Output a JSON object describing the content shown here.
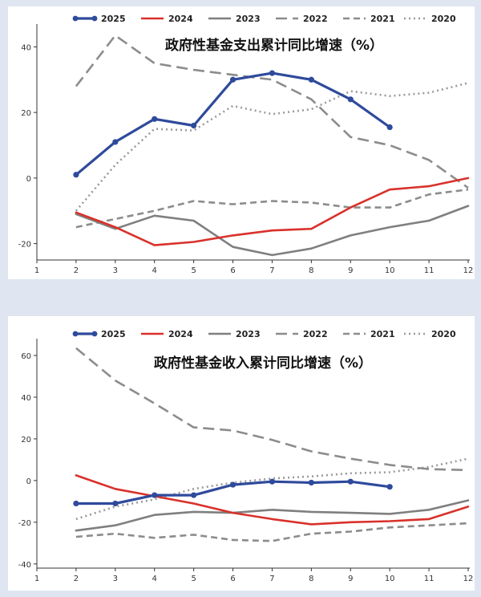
{
  "styles": {
    "2025": {
      "color": "#2e4a9c",
      "dash": "",
      "width": 3.2,
      "marker": true
    },
    "2024": {
      "color": "#d9312b",
      "dash": "",
      "width": 2.6,
      "marker": false
    },
    "2023": {
      "color": "#7f7f7f",
      "dash": "",
      "width": 2.6,
      "marker": false
    },
    "2022": {
      "color": "#8c8c8c",
      "dash": "14,7",
      "width": 2.6,
      "marker": false
    },
    "2021": {
      "color": "#8c8c8c",
      "dash": "8,5",
      "width": 2.6,
      "marker": false
    },
    "2020": {
      "color": "#9a9a9a",
      "dash": "2,4",
      "width": 2.6,
      "marker": false
    }
  },
  "chart_data": [
    {
      "type": "line",
      "title": "政府性基金支出累计同比增速（%）",
      "x": [
        1,
        2,
        3,
        4,
        5,
        6,
        7,
        8,
        9,
        10,
        11,
        12
      ],
      "xticks": [
        "1",
        "2",
        "3",
        "4",
        "5",
        "6",
        "7",
        "8",
        "9",
        "10",
        "11",
        "12"
      ],
      "yticks": [
        "-20",
        "0",
        "20",
        "40"
      ],
      "ytick_values": [
        -20,
        0,
        20,
        40
      ],
      "ylim": [
        -25,
        45
      ],
      "xlim": [
        1,
        12
      ],
      "legend_position": "top",
      "series": [
        {
          "name": "2025",
          "x": [
            2,
            3,
            4,
            5,
            6,
            7,
            8,
            9,
            10
          ],
          "values": [
            1,
            11,
            18,
            16,
            30,
            32,
            30,
            24,
            15.5
          ]
        },
        {
          "name": "2024",
          "x": [
            2,
            3,
            4,
            5,
            6,
            7,
            8,
            9,
            10,
            11,
            12
          ],
          "values": [
            -10.5,
            -15,
            -20.5,
            -19.5,
            -17.5,
            -16,
            -15.5,
            -9,
            -3.5,
            -2.5,
            0
          ]
        },
        {
          "name": "2023",
          "x": [
            2,
            3,
            4,
            5,
            6,
            7,
            8,
            9,
            10,
            11,
            12
          ],
          "values": [
            -11,
            -15.5,
            -11.5,
            -13,
            -21,
            -23.5,
            -21.5,
            -17.5,
            -15,
            -13,
            -8.5
          ]
        },
        {
          "name": "2022",
          "x": [
            2,
            3,
            4,
            5,
            6,
            7,
            8,
            9,
            10,
            11,
            12
          ],
          "values": [
            28,
            43.5,
            35,
            33,
            31.5,
            30,
            24,
            12.5,
            10,
            5.5,
            -3
          ]
        },
        {
          "name": "2021",
          "x": [
            2,
            3,
            4,
            5,
            6,
            7,
            8,
            9,
            10,
            11,
            12
          ],
          "values": [
            -15,
            -12.5,
            -10,
            -7,
            -8,
            -7,
            -7.5,
            -9,
            -9,
            -5,
            -3.5
          ]
        },
        {
          "name": "2020",
          "x": [
            2,
            3,
            4,
            5,
            6,
            7,
            8,
            9,
            10,
            11,
            12
          ],
          "values": [
            -10,
            4,
            15,
            14.5,
            22,
            19.5,
            21,
            26.5,
            25,
            26,
            29
          ]
        }
      ]
    },
    {
      "type": "line",
      "title": "政府性基金收入累计同比增速（%）",
      "x": [
        1,
        2,
        3,
        4,
        5,
        6,
        7,
        8,
        9,
        10,
        11,
        12
      ],
      "xticks": [
        "1",
        "2",
        "3",
        "4",
        "5",
        "6",
        "7",
        "8",
        "9",
        "10",
        "11",
        "12"
      ],
      "yticks": [
        "-40",
        "-20",
        "0",
        "20",
        "40",
        "60"
      ],
      "ytick_values": [
        -40,
        -20,
        0,
        20,
        40,
        60
      ],
      "ylim": [
        -42,
        65
      ],
      "xlim": [
        1,
        12
      ],
      "legend_position": "top",
      "series": [
        {
          "name": "2025",
          "x": [
            2,
            3,
            4,
            5,
            6,
            7,
            8,
            9,
            10
          ],
          "values": [
            -11,
            -11,
            -7,
            -7,
            -2,
            -0.5,
            -1,
            -0.5,
            -3
          ]
        },
        {
          "name": "2024",
          "x": [
            2,
            3,
            4,
            5,
            6,
            7,
            8,
            9,
            10,
            11,
            12
          ],
          "values": [
            2.5,
            -4,
            -7.5,
            -11,
            -15.5,
            -18.5,
            -21,
            -20,
            -19.5,
            -18.5,
            -12.5
          ]
        },
        {
          "name": "2023",
          "x": [
            2,
            3,
            4,
            5,
            6,
            7,
            8,
            9,
            10,
            11,
            12
          ],
          "values": [
            -24,
            -21.5,
            -16.5,
            -15,
            -15.5,
            -14,
            -15,
            -15.5,
            -16,
            -14,
            -9.5
          ]
        },
        {
          "name": "2022",
          "x": [
            2,
            3,
            4,
            5,
            6,
            7,
            8,
            9,
            10,
            11,
            12
          ],
          "values": [
            63.5,
            48,
            37,
            25.5,
            24,
            19.5,
            14,
            10.5,
            7.5,
            5.5,
            5
          ]
        },
        {
          "name": "2021",
          "x": [
            2,
            3,
            4,
            5,
            6,
            7,
            8,
            9,
            10,
            11,
            12
          ],
          "values": [
            -27,
            -25.5,
            -27.5,
            -26,
            -28.5,
            -29,
            -25.5,
            -24.5,
            -22.5,
            -21.5,
            -20.5
          ]
        },
        {
          "name": "2020",
          "x": [
            2,
            3,
            4,
            5,
            6,
            7,
            8,
            9,
            10,
            11,
            12
          ],
          "values": [
            -18.5,
            -12.5,
            -9,
            -4,
            -1,
            1,
            2,
            3.5,
            4,
            6.5,
            10.5
          ]
        }
      ]
    }
  ]
}
